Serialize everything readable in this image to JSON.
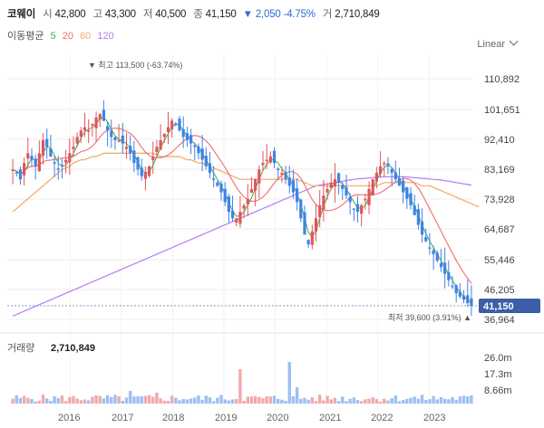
{
  "header": {
    "name": "코웨이",
    "open_label": "시",
    "open": "42,800",
    "high_label": "고",
    "high": "43,300",
    "low_label": "저",
    "low": "40,500",
    "close_label": "종",
    "close": "41,150",
    "change": "▼ 2,050 -4.75%",
    "volume_label": "거",
    "volume": "2,710,849"
  },
  "ma_legend": {
    "title": "이동평균",
    "periods": [
      "5",
      "20",
      "60",
      "120"
    ]
  },
  "scale_mode": "Linear",
  "colors": {
    "up": "#e0565b",
    "down": "#3f83e6",
    "ma5": "#3fae49",
    "ma20": "#f06c6c",
    "ma60": "#f4a862",
    "ma120": "#b47cf0",
    "price_tag": "#3b5ea6"
  },
  "chart_data": {
    "type": "candlestick",
    "price_axis": {
      "ticks": [
        "110,892",
        "101,651",
        "92,410",
        "83,169",
        "73,928",
        "64,687",
        "55,446",
        "46,205",
        "36,964"
      ],
      "min": 36964,
      "max": 110892
    },
    "current_price": "41,150",
    "max_annotation": "▼ 최고 113,500 (-63.74%)",
    "min_annotation": "최저 39,600 (3.91%) ▲",
    "x_axis": {
      "labels": [
        "2016",
        "2017",
        "2018",
        "2019",
        "2020",
        "2021",
        "2022",
        "2023"
      ]
    },
    "volume_panel": {
      "label": "거래량",
      "value": "2,710,849",
      "ticks": [
        "26.0m",
        "17.3m",
        "8.66m"
      ]
    },
    "close_series": [
      83,
      82,
      80,
      85,
      88,
      86,
      84,
      88,
      92,
      90,
      87,
      85,
      83,
      84,
      86,
      88,
      90,
      93,
      95,
      96,
      95,
      97,
      99,
      100,
      98,
      95,
      93,
      92,
      92,
      91,
      90,
      88,
      85,
      83,
      81,
      82,
      84,
      87,
      90,
      92,
      94,
      96,
      98,
      97,
      95,
      93,
      92,
      91,
      90,
      88,
      86,
      84,
      82,
      80,
      78,
      76,
      73,
      70,
      68,
      68,
      70,
      72,
      74,
      77,
      80,
      83,
      85,
      86,
      87,
      85,
      83,
      82,
      80,
      78,
      76,
      73,
      68,
      63,
      60,
      64,
      68,
      72,
      75,
      77,
      79,
      80,
      79,
      77,
      75,
      73,
      71,
      70,
      72,
      74,
      77,
      80,
      82,
      84,
      85,
      84,
      82,
      80,
      78,
      76,
      74,
      72,
      69,
      66,
      63,
      61,
      59,
      57,
      55,
      53,
      51,
      49,
      47,
      45,
      44,
      43,
      42,
      41.1
    ],
    "ma60_series": [
      70,
      71,
      72,
      73,
      74,
      75,
      76,
      77,
      78,
      79,
      80,
      81,
      82,
      83,
      83.5,
      84,
      85,
      85.5,
      86,
      86,
      86.5,
      87,
      87,
      87.5,
      88,
      88,
      88,
      88,
      88,
      88,
      88,
      88,
      88,
      88,
      88,
      88,
      88,
      88,
      87.5,
      87,
      87,
      87,
      87,
      87,
      87,
      86.5,
      86,
      86,
      85.5,
      85,
      85,
      84.5,
      84,
      83.5,
      83,
      82.5,
      82,
      81.5,
      81,
      80.5,
      80,
      80,
      80,
      80,
      80,
      80,
      80,
      80,
      80,
      80,
      80,
      80,
      80,
      80,
      80,
      80,
      79.5,
      79,
      78.5,
      78,
      78,
      78,
      78,
      78,
      78,
      78,
      78,
      78,
      78,
      78,
      78,
      78,
      78,
      78,
      78,
      78,
      78,
      78.5,
      79,
      79,
      79,
      79,
      79,
      79,
      79,
      79,
      79,
      78.5,
      78,
      78,
      78,
      77.5,
      77,
      76.5,
      76,
      75.5,
      75,
      74.5,
      74,
      73.5,
      73,
      72.5,
      72,
      71.5
    ],
    "ma120_series": [
      38,
      38.5,
      39,
      39.5,
      40,
      40.5,
      41,
      41.5,
      42,
      42.5,
      43,
      43.5,
      44,
      44.5,
      45,
      45.5,
      46,
      46.5,
      47,
      47.5,
      48,
      48.5,
      49,
      49.5,
      50,
      50.5,
      51,
      51.5,
      52,
      52.5,
      53,
      53.5,
      54,
      54.5,
      55,
      55.5,
      56,
      56.5,
      57,
      57.5,
      58,
      58.5,
      59,
      59.5,
      60,
      60.5,
      61,
      61.5,
      62,
      62.5,
      63,
      63.5,
      64,
      64.5,
      65,
      65.5,
      66,
      66.5,
      67,
      67.5,
      68,
      68.5,
      69,
      69.5,
      70,
      70.5,
      71,
      71.5,
      72,
      72.5,
      73,
      73.5,
      74,
      74.5,
      75,
      75.5,
      76,
      76.5,
      77,
      77.5,
      78,
      78.2,
      78.4,
      78.6,
      78.8,
      79,
      79.2,
      79.4,
      79.6,
      79.8,
      80,
      80.1,
      80.2,
      80.3,
      80.4,
      80.5,
      80.6,
      80.7,
      80.8,
      80.8,
      80.8,
      80.8,
      80.8,
      80.8,
      80.7,
      80.6,
      80.5,
      80.4,
      80.3,
      80.2,
      80.1,
      80,
      79.9,
      79.8,
      79.6,
      79.4,
      79.2,
      79,
      78.8,
      78.6,
      78.4,
      78.2
    ]
  }
}
